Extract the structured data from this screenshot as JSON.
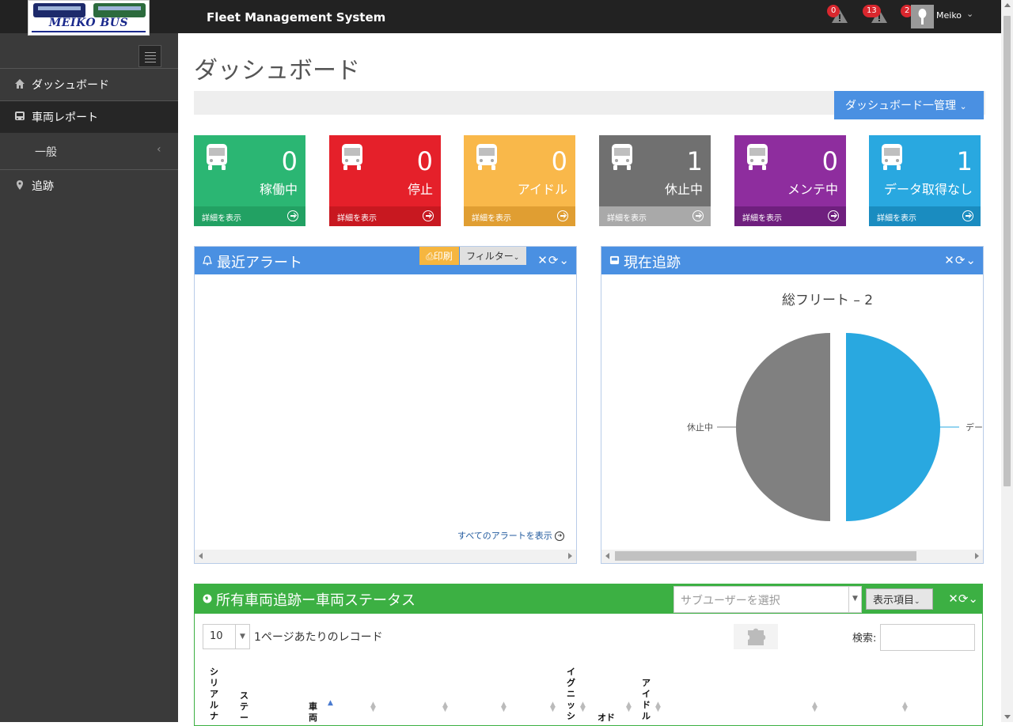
{
  "header": {
    "logo_text": "MEIKO BUS",
    "app_title": "Fleet Management System",
    "alerts": [
      {
        "count": "0"
      },
      {
        "count": "13"
      },
      {
        "count": "2"
      }
    ],
    "username": "Meiko"
  },
  "sidebar": {
    "items": [
      {
        "label": "ダッシュボード",
        "icon": "home-icon"
      },
      {
        "label": "車両レポート",
        "icon": "bus-icon"
      },
      {
        "label": "一般",
        "icon": "chevron-left-icon"
      },
      {
        "label": "追跡",
        "icon": "map-pin-icon"
      }
    ]
  },
  "main": {
    "page_title": "ダッシュボード",
    "manage_button": "ダッシュボード一管理",
    "tiles": [
      {
        "value": "0",
        "label": "稼働中",
        "footer": "詳細を表示",
        "color": "#2bb673",
        "foot_color": "#22a163"
      },
      {
        "value": "0",
        "label": "停止",
        "footer": "詳細を表示",
        "color": "#e5202a",
        "foot_color": "#c81820"
      },
      {
        "value": "0",
        "label": "アイドル",
        "footer": "詳細を表示",
        "color": "#f9b84a",
        "foot_color": "#e09e32"
      },
      {
        "value": "1",
        "label": "休止中",
        "footer": "詳細を表示",
        "color": "#707070",
        "foot_color": "#a9a9a9"
      },
      {
        "value": "0",
        "label": "メンテ中",
        "footer": "詳細を表示",
        "color": "#8e2d9e",
        "foot_color": "#6f1f7e"
      },
      {
        "value": "1",
        "label": "データ取得なし",
        "footer": "詳細を表示",
        "color": "#29a8e0",
        "foot_color": "#1a8cc0"
      }
    ],
    "alerts_panel": {
      "title": "最近アラート",
      "print_label": "印刷",
      "filter_label": "フィルター",
      "view_all": "すべてのアラートを表示"
    },
    "tracking_panel": {
      "title": "現在追跡"
    },
    "status_panel": {
      "title": "所有車両追跡ー車両ステータス",
      "subuser_placeholder": "サブユーザーを選択",
      "columns_button": "表示項目",
      "page_size": "10",
      "per_page_label": "1ページあたりのレコード",
      "search_label": "検索:",
      "columns": [
        "シリアルナ",
        "ステー",
        "車両",
        "イグニッシ",
        "オド",
        "アイドル"
      ]
    }
  },
  "chart_data": {
    "type": "pie",
    "title": "総フリート – 2",
    "slices": [
      {
        "name": "データ取得なし",
        "value": 1,
        "color": "#29a8e0"
      },
      {
        "name": "休止中",
        "value": 1,
        "color": "#808080"
      }
    ],
    "labels_visible": [
      "データ",
      "休止中"
    ]
  }
}
